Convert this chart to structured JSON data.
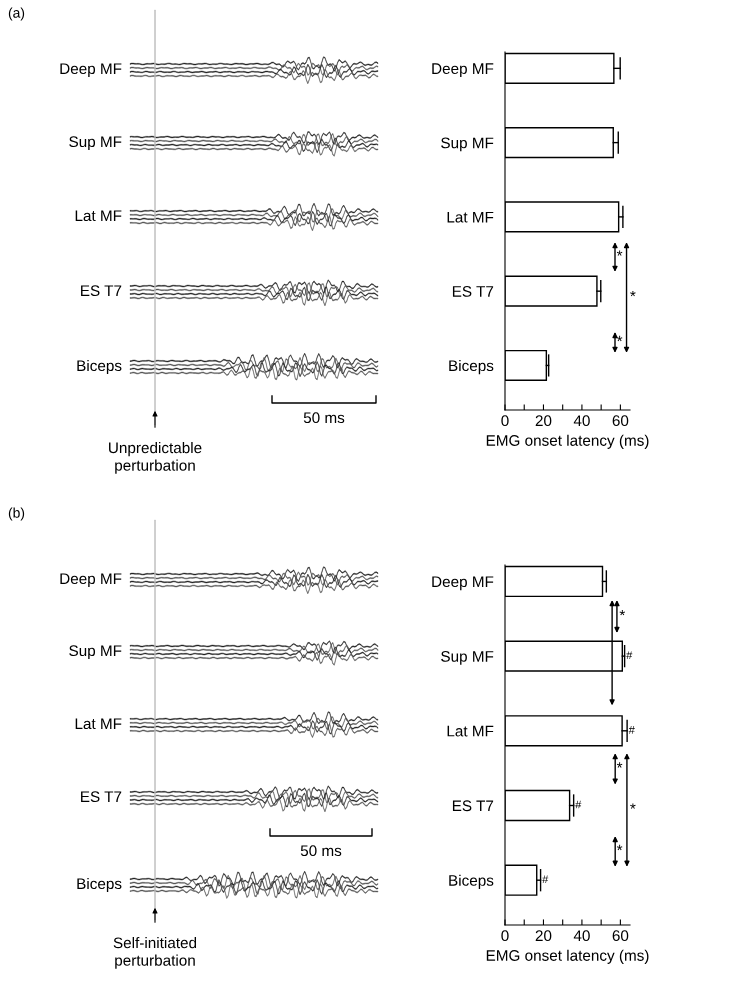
{
  "chart_data": [
    {
      "type": "other",
      "title": "(a)",
      "annotations": [
        "Deep MF",
        "Sup MF",
        "Lat MF",
        "ES T7",
        "Biceps",
        "50 ms",
        "Unpredictable perturbation"
      ]
    },
    {
      "type": "bar",
      "orientation": "horizontal",
      "categories": [
        "Deep MF",
        "Sup MF",
        "Lat MF",
        "ES T7",
        "Biceps"
      ],
      "values": [
        56.6,
        56.3,
        59.1,
        47.8,
        21.5
      ],
      "color": "#ffffff",
      "errors": [
        [
          56.6,
          59.9
        ],
        [
          56.3,
          58.9
        ],
        [
          59.1,
          61.3
        ],
        [
          47.8,
          49.8
        ],
        [
          21.5,
          22.7
        ]
      ],
      "xlim": [
        0,
        65
      ],
      "xticks": [
        0,
        {
          "value": 10,
          "label": null
        },
        20,
        {
          "value": 30,
          "label": null
        },
        40,
        {
          "value": 50,
          "label": null
        },
        60
      ],
      "xlabel": "EMG onset latency (ms)",
      "annotations": [
        "*",
        "*",
        "*"
      ]
    },
    {
      "type": "other",
      "title": "(b)",
      "annotations": [
        "Deep MF",
        "Sup MF",
        "Lat MF",
        "ES T7",
        "Biceps",
        "50 ms",
        "Self-initiated perturbation"
      ]
    },
    {
      "type": "bar",
      "orientation": "horizontal",
      "categories": [
        "Deep MF",
        "Sup MF",
        "Lat MF",
        "ES T7",
        "Biceps"
      ],
      "values": [
        50.7,
        61.0,
        60.9,
        33.6,
        16.5
      ],
      "color": "#ffffff",
      "errors": [
        [
          50.7,
          52.7
        ],
        [
          61.0,
          62.2
        ],
        [
          60.9,
          63.5
        ],
        [
          33.6,
          35.7
        ],
        [
          16.5,
          18.5
        ]
      ],
      "xlim": [
        0,
        65
      ],
      "xticks": [
        0,
        {
          "value": 10,
          "label": null
        },
        20,
        {
          "value": 30,
          "label": null
        },
        40,
        {
          "value": 50,
          "label": null
        },
        60
      ],
      "xlabel": "EMG onset latency (ms)",
      "annotations": [
        "*",
        "*",
        "*",
        "*",
        {
          "text": "#",
          "x": 62.2,
          "y": "Sup MF"
        },
        {
          "text": "#",
          "x": 63.5,
          "y": "Lat MF"
        },
        {
          "text": "#",
          "x": 35.7,
          "y": "ES T7"
        },
        {
          "text": "#",
          "x": 18.5,
          "y": "Biceps"
        }
      ]
    }
  ]
}
